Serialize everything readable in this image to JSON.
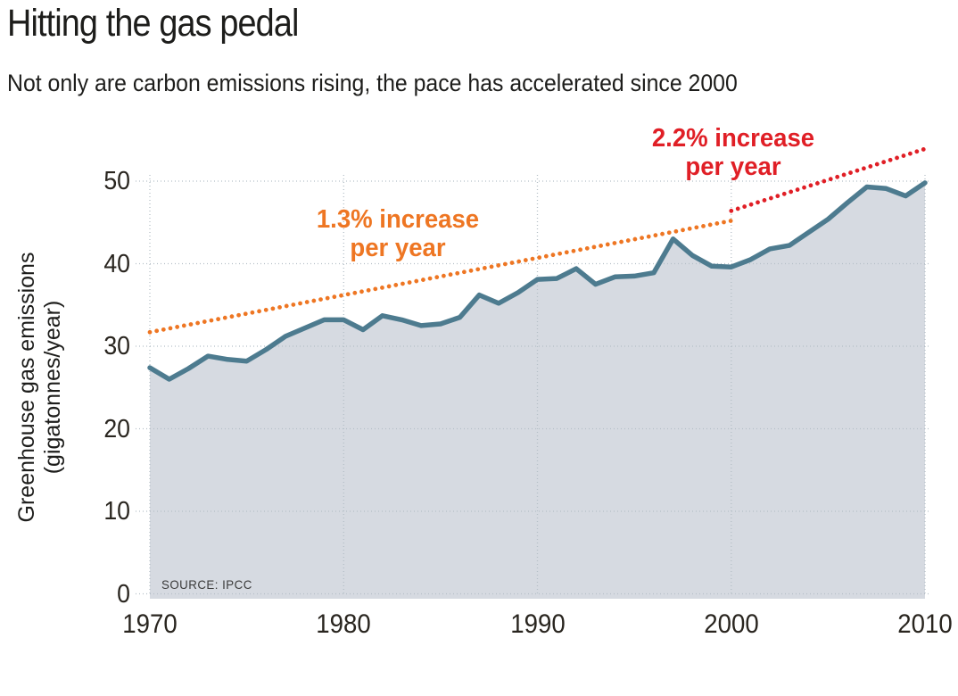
{
  "title": "Hitting the gas pedal",
  "subtitle": "Not only are carbon emissions rising, the pace has accelerated since 2000",
  "source": "SOURCE: IPCC",
  "y_axis": {
    "title_line1": "Greenhouse gas emissions",
    "title_line2": "(gigatonnes/year)",
    "ticks": [
      0,
      10,
      20,
      30,
      40,
      50
    ]
  },
  "x_axis": {
    "ticks": [
      1970,
      1980,
      1990,
      2000,
      2010
    ]
  },
  "annotations": {
    "orange_line1": "1.3% increase",
    "orange_line2": "per year",
    "red_line1": "2.2% increase",
    "red_line2": "per year"
  },
  "colors": {
    "line": "#4d7b8f",
    "fill": "#d6dae1",
    "grid": "#b5bfc7",
    "orange": "#ee7623",
    "red": "#e01f26",
    "text": "#1d1d1b"
  },
  "chart_data": {
    "type": "area",
    "title": "Hitting the gas pedal",
    "xlabel": "",
    "ylabel": "Greenhouse gas emissions (gigatonnes/year)",
    "xlim": [
      1970,
      2010
    ],
    "ylim": [
      0,
      54
    ],
    "grid": "dotted",
    "x": [
      1970,
      1971,
      1972,
      1973,
      1974,
      1975,
      1976,
      1977,
      1978,
      1979,
      1980,
      1981,
      1982,
      1983,
      1984,
      1985,
      1986,
      1987,
      1988,
      1989,
      1990,
      1991,
      1992,
      1993,
      1994,
      1995,
      1996,
      1997,
      1998,
      1999,
      2000,
      2001,
      2002,
      2003,
      2004,
      2005,
      2006,
      2007,
      2008,
      2009,
      2010
    ],
    "values": [
      27.4,
      26.0,
      27.3,
      28.8,
      28.4,
      28.2,
      29.6,
      31.2,
      32.2,
      33.2,
      33.2,
      32.0,
      33.7,
      33.2,
      32.5,
      32.7,
      33.5,
      36.2,
      35.2,
      36.5,
      38.1,
      38.2,
      39.4,
      37.5,
      38.4,
      38.5,
      38.9,
      43.0,
      41.0,
      39.7,
      39.6,
      40.5,
      41.8,
      42.2,
      43.8,
      45.4,
      47.4,
      49.3,
      49.1,
      48.2,
      49.8
    ],
    "series_name": "Greenhouse gas emissions (gigatonnes/year)",
    "trend_lines": [
      {
        "label": "1.3% increase per year",
        "color_key": "orange",
        "start_year": 1970,
        "start_value": 31.7,
        "end_year": 2000,
        "end_value": 45.2
      },
      {
        "label": "2.2% increase per year",
        "color_key": "red",
        "start_year": 2000,
        "start_value": 46.4,
        "end_year": 2010,
        "end_value": 53.9
      }
    ]
  }
}
